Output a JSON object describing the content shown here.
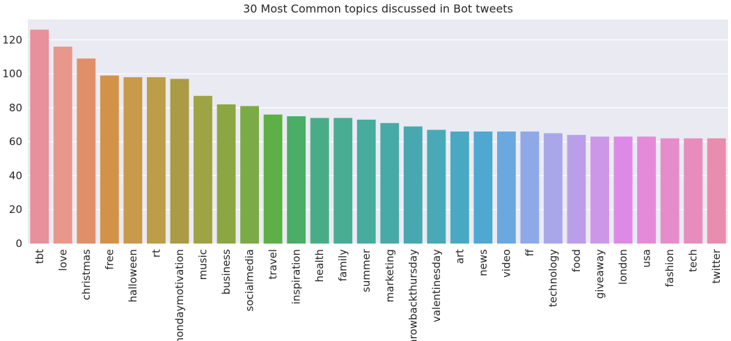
{
  "chart_data": {
    "type": "bar",
    "title": "30 Most Common topics discussed in Bot tweets",
    "xlabel": "",
    "ylabel": "",
    "ylim": [
      0,
      132
    ],
    "yticks": [
      0,
      20,
      40,
      60,
      80,
      100,
      120
    ],
    "grid": true,
    "categories": [
      "tbt",
      "love",
      "christmas",
      "free",
      "halloween",
      "rt",
      "mondaymotivation",
      "music",
      "business",
      "socialmedia",
      "travel",
      "inspiration",
      "health",
      "family",
      "summer",
      "marketing",
      "throwbackthursday",
      "valentinesday",
      "art",
      "news",
      "video",
      "ff",
      "technology",
      "food",
      "giveaway",
      "london",
      "usa",
      "fashion",
      "tech",
      "twitter"
    ],
    "values": [
      126,
      116,
      109,
      99,
      98,
      98,
      97,
      87,
      82,
      81,
      76,
      75,
      74,
      74,
      73,
      71,
      69,
      67,
      66,
      66,
      66,
      66,
      65,
      64,
      63,
      63,
      63,
      62,
      62,
      62
    ],
    "colors": [
      "#e8909b",
      "#e8988b",
      "#e08f68",
      "#d3924a",
      "#c79a4c",
      "#bd9d48",
      "#aa9b44",
      "#9ea344",
      "#8ba744",
      "#7bab46",
      "#5cb045",
      "#4aae66",
      "#48ad86",
      "#48ad92",
      "#47ac9e",
      "#48aaa7",
      "#48a8b0",
      "#49a9b7",
      "#49a9c2",
      "#4fa8cf",
      "#6aa8e0",
      "#8fa9e6",
      "#a9a7ea",
      "#bb9eea",
      "#cd97e7",
      "#dc8ae6",
      "#e48ad9",
      "#e68ccb",
      "#e78dbd",
      "#e88dae"
    ]
  }
}
